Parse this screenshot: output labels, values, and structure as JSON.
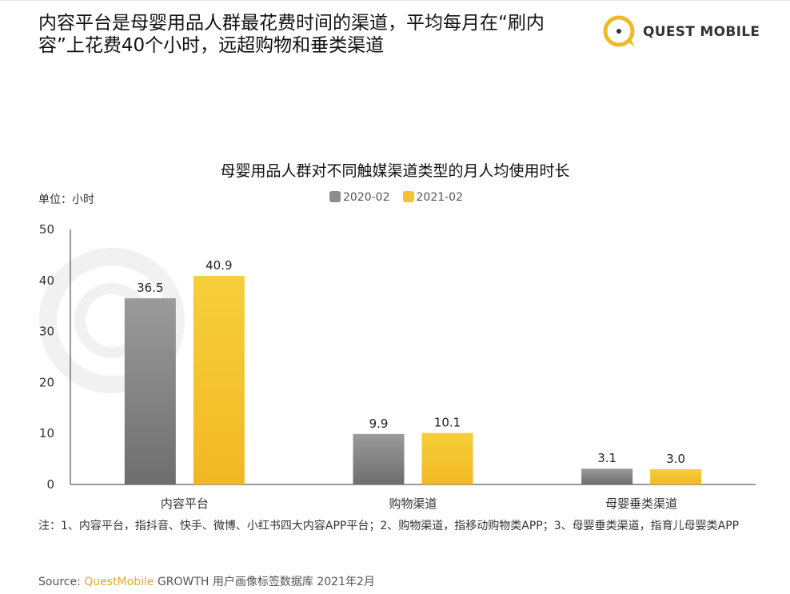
{
  "header": {
    "title": "内容平台是母婴用品人群最花费时间的渠道，平均每月在“刷内容”上花费40个小时，远超购物和垂类渠道",
    "logo_text": "QUEST MOBILE"
  },
  "watermark": "QUEST MOBILE",
  "chart_data": {
    "type": "bar",
    "title": "母婴用品人群对不同触媒渠道类型的月人均使用时长",
    "unit_label": "单位：小时",
    "categories": [
      "内容平台",
      "购物渠道",
      "母婴垂类渠道"
    ],
    "series": [
      {
        "name": "2020-02",
        "color": "#8c8c8c",
        "values": [
          36.5,
          9.9,
          3.1
        ],
        "labels": [
          "36.5",
          "9.9",
          "3.1"
        ]
      },
      {
        "name": "2021-02",
        "color": "#f2c230",
        "values": [
          40.9,
          10.1,
          3.0
        ],
        "labels": [
          "40.9",
          "10.1",
          "3.0"
        ]
      }
    ],
    "ylim": [
      0,
      50
    ],
    "yticks": [
      "0",
      "10",
      "20",
      "30",
      "40",
      "50"
    ],
    "grid": false,
    "legend": "top-center"
  },
  "footer": {
    "note": "注：1、内容平台，指抖音、快手、微博、小红书四大内容APP平台；2、购物渠道，指移动购物类APP；3、母婴垂类渠道，指育儿母婴类APP",
    "source_label": "Source:",
    "source_brand": "QuestMobile",
    "source_rest": "GROWTH 用户画像标签数据库 2021年2月"
  }
}
